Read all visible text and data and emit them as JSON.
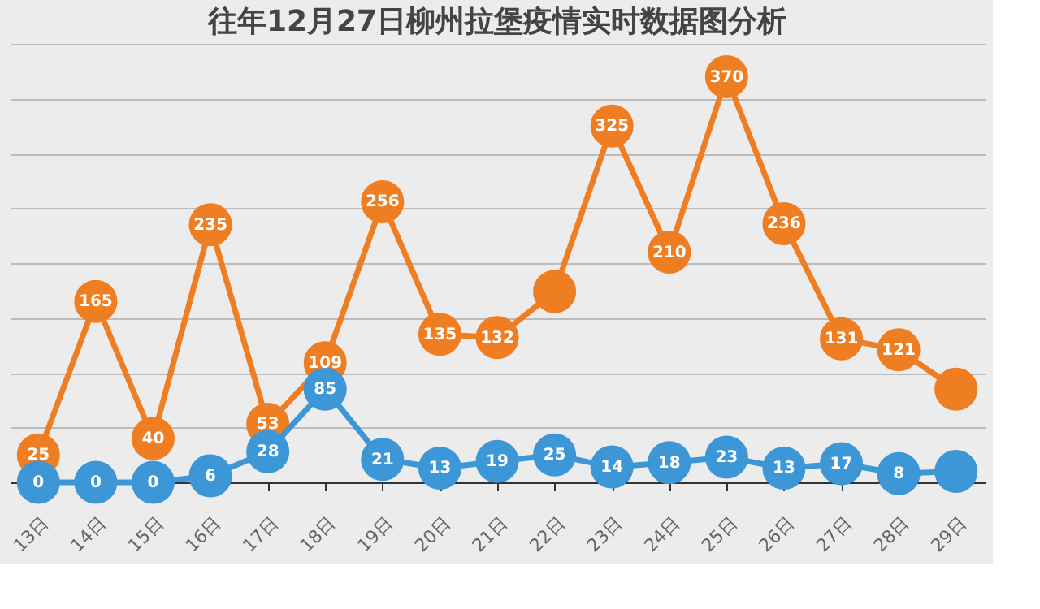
{
  "chart_data": {
    "type": "line",
    "title": "往年12月27日柳州拉堡疫情实时数据图分析",
    "categories": [
      "13日",
      "14日",
      "15日",
      "16日",
      "17日",
      "18日",
      "19日",
      "20日",
      "21日",
      "22日",
      "23日",
      "24日",
      "25日",
      "26日",
      "27日",
      "28日",
      "29日"
    ],
    "series": [
      {
        "color": "#ef7d22",
        "values": [
          25,
          165,
          40,
          235,
          53,
          109,
          256,
          135,
          132,
          174,
          325,
          210,
          370,
          236,
          131,
          121,
          85
        ],
        "value_labels": [
          "25",
          "165",
          "40",
          "235",
          "53",
          "109",
          "256",
          "135",
          "132",
          null,
          "325",
          "210",
          "370",
          "236",
          "131",
          "121",
          null
        ]
      },
      {
        "color": "#3d97d6",
        "values": [
          0,
          0,
          0,
          6,
          28,
          85,
          21,
          13,
          19,
          25,
          14,
          18,
          23,
          13,
          17,
          8,
          10
        ],
        "value_labels": [
          "0",
          "0",
          "0",
          "6",
          "28",
          "85",
          "21",
          "13",
          "19",
          "25",
          "14",
          "18",
          "23",
          "13",
          "17",
          "8",
          null
        ]
      }
    ],
    "grid": "y",
    "tick_labels": "x",
    "marker": "circle",
    "line_style": "solid",
    "legend": false
  }
}
